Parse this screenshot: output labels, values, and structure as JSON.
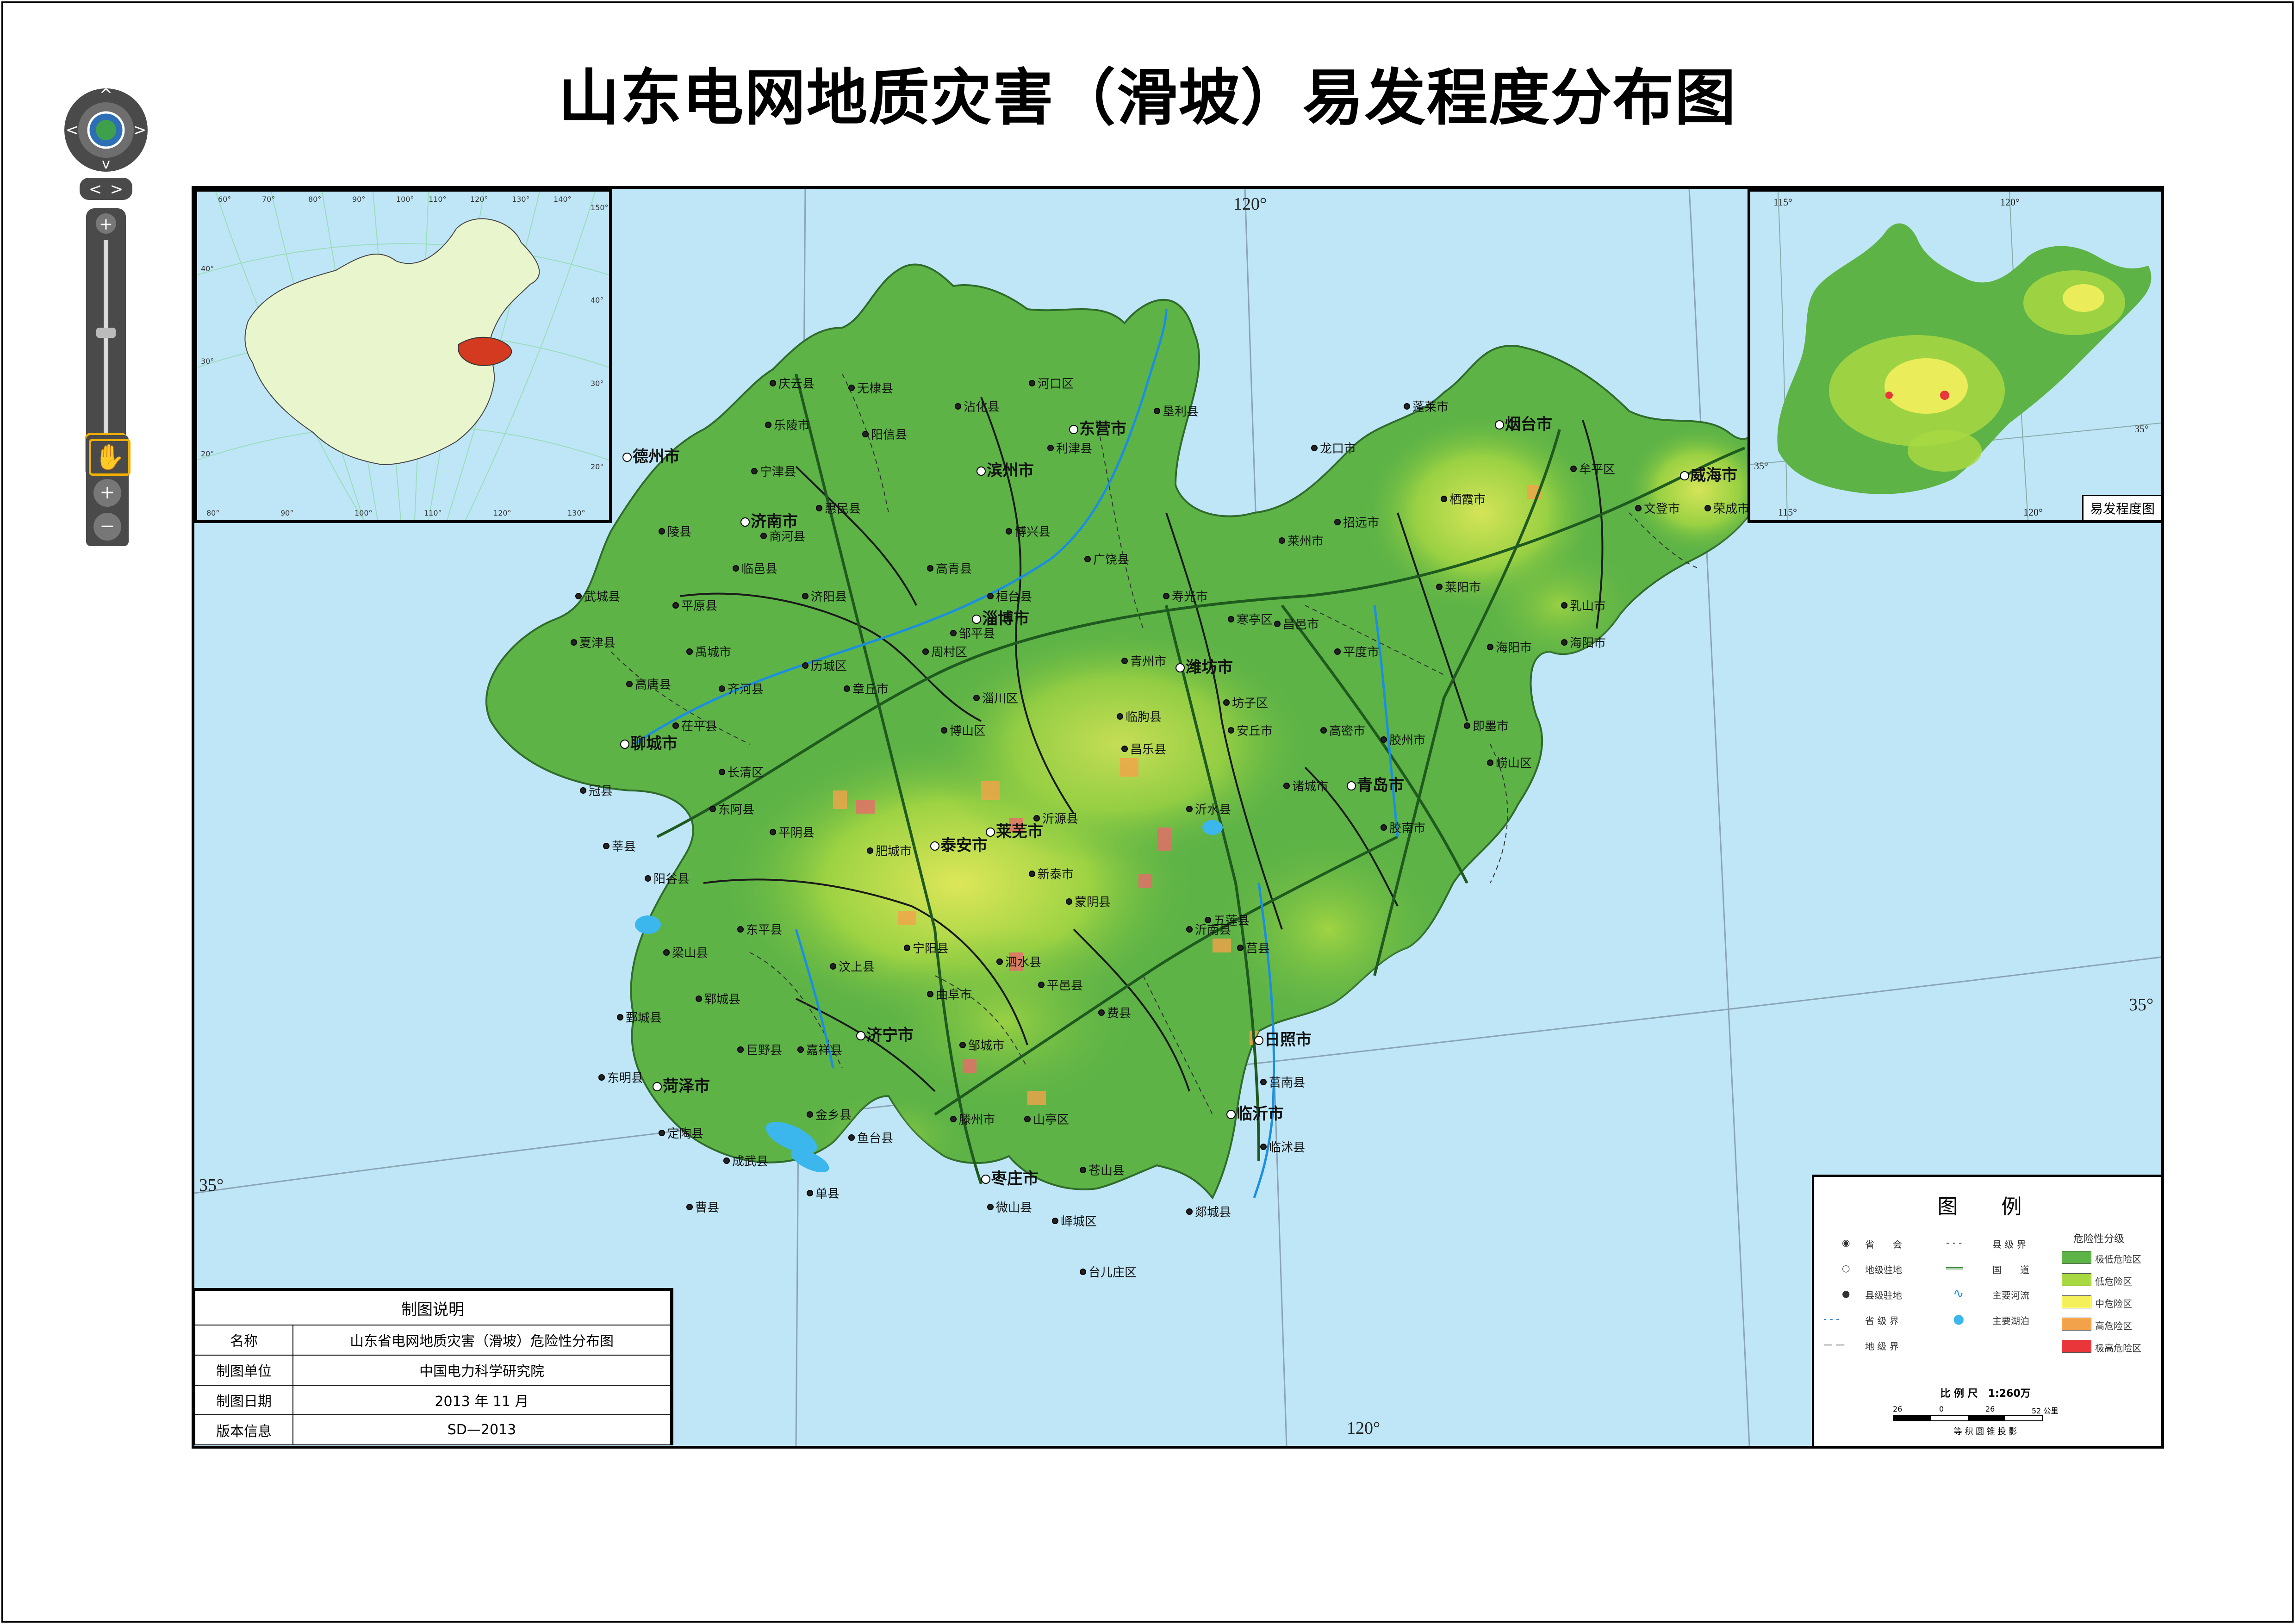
{
  "title": "山东电网地质灾害（滑坡）易发程度分布图",
  "nav": {
    "pan_up": "^",
    "pan_down": "v",
    "pan_left": "<",
    "pan_right": ">",
    "zoom_in": "+",
    "zoom_out": "−"
  },
  "graticule": {
    "main_lon_120_top": "120°",
    "main_lon_120_bottom": "120°",
    "main_lat_35_right": "35°",
    "main_lat_35_left": "35°"
  },
  "inset_china": {
    "lon_labels": [
      "60°",
      "70°",
      "80°",
      "90°",
      "100°",
      "110°",
      "120°",
      "130°",
      "140°",
      "150°"
    ],
    "lat_labels": [
      "40°",
      "30°",
      "20°",
      "40°",
      "30°",
      "20°"
    ],
    "bottom_labels": [
      "80°",
      "90°",
      "100°",
      "110°",
      "120°",
      "130°"
    ]
  },
  "inset_terrain": {
    "lon_115_top": "115°",
    "lon_120_top": "120°",
    "lon_115_bottom": "115°",
    "lon_120_bottom": "120°",
    "lat_35_right": "35°",
    "lat_35_left": "35°",
    "caption": "易发程度图"
  },
  "places": {
    "jinan": "济南市",
    "dezhou": "德州市",
    "binzhou": "滨州市",
    "dongying": "东营市",
    "hekou": "河口区",
    "zibo": "淄博市",
    "weifang": "潍坊市",
    "yantai": "烟台市",
    "weihai": "威海市",
    "qingdao": "青岛市",
    "rizhao": "日照市",
    "linyi": "临沂市",
    "zaozhuang": "枣庄市",
    "jining": "济宁市",
    "heze": "菏泽市",
    "taian": "泰安市",
    "laiwu": "莱芜市",
    "liaocheng": "聊城市",
    "penglai": "蓬莱市",
    "longkou": "龙口市",
    "laizhou": "莱州市",
    "zhaoyuan": "招远市",
    "qixia": "栖霞市",
    "laiyang": "莱阳市",
    "haiyang": "海阳市",
    "rushan": "乳山市",
    "wendeng": "文登市",
    "rongcheng": "荣成市",
    "muping": "牟平区",
    "pingdu": "平度市",
    "jimo": "即墨市",
    "laoshan": "崂山区",
    "jiaozhou": "胶州市",
    "jiaonan": "胶南市",
    "gaomi": "高密市",
    "zhucheng": "诸城市",
    "anqiu": "安丘市",
    "changyi": "昌邑市",
    "shouguang": "寿光市",
    "qingzhou": "青州市",
    "linqu": "临朐县",
    "yishui": "沂水县",
    "yiyuan": "沂源县",
    "mengyin": "蒙阴县",
    "pingyi": "平邑县",
    "feixian": "费县",
    "yinan": "沂南县",
    "juxian": "莒县",
    "junan": "莒南县",
    "linshu": "临沭县",
    "tancheng": "郯城县",
    "cangshan": "苍山县",
    "shanting": "山亭区",
    "yicheng": "峄城区",
    "taierzhuang": "台儿庄区",
    "tengzhou": "滕州市",
    "weishan": "微山县",
    "zoucheng": "邹城市",
    "qufu": "曲阜市",
    "sishui": "泗水县",
    "xintai": "新泰市",
    "feicheng": "肥城市",
    "ningyang": "宁阳县",
    "wenshang": "汶上县",
    "liangshan": "梁山县",
    "jiaxiang": "嘉祥县",
    "yutai": "鱼台县",
    "jinxiang": "金乡县",
    "shanxian": "单县",
    "caoxian": "曹县",
    "chengwu": "成武县",
    "dingtao": "定陶县",
    "dongming": "东明县",
    "juancheng": "鄄城县",
    "yuncheng": "郓城县",
    "juye": "巨野县",
    "dongping": "东平县",
    "pingyin": "平阴县",
    "donga": "东阿县",
    "yanggu": "阳谷县",
    "shenxian": "莘县",
    "guanxian": "冠县",
    "chiping": "茌平县",
    "gaotang": "高唐县",
    "xiajin": "夏津县",
    "wucheng": "武城县",
    "pingyuan": "平原县",
    "yucheng": "禹城市",
    "qihe": "齐河县",
    "changqing": "长清区",
    "zhangqiu": "章丘市",
    "licheng": "历城区",
    "jiyang": "济阳县",
    "shanghe": "商河县",
    "linyi_county": "临邑县",
    "lingxian": "陵县",
    "ningjin": "宁津县",
    "leling": "乐陵市",
    "qingyun": "庆云县",
    "wudi": "无棣县",
    "yangxin": "阳信县",
    "zhanhua": "沾化县",
    "huimin": "惠民县",
    "kenli": "垦利县",
    "lijin": "利津县",
    "guangrao": "广饶县",
    "boxing": "博兴县",
    "gaoqing": "高青县",
    "zouping": "邹平县",
    "huantai": "桓台县",
    "zhoucun": "周村区",
    "boshan": "博山区",
    "zichuan": "淄川区",
    "changle": "昌乐县",
    "fangzi": "坊子区",
    "hanting": "寒亭区",
    "wulian": "五莲县",
    "haiyang2": "海阳市"
  },
  "info_table": {
    "header": "制图说明",
    "rows": [
      {
        "k": "名称",
        "v": "山东省电网地质灾害（滑坡）危险性分布图"
      },
      {
        "k": "制图单位",
        "v": "中国电力科学研究院"
      },
      {
        "k": "制图日期",
        "v": "2013 年 11 月"
      },
      {
        "k": "版本信息",
        "v": "SD—2013"
      }
    ]
  },
  "legend": {
    "title": "图 例",
    "symbols": [
      {
        "label": "省　　会",
        "glyph": "◉"
      },
      {
        "label": "地级驻地",
        "glyph": "○"
      },
      {
        "label": "县级驻地",
        "glyph": "●"
      },
      {
        "label": "省 级 界",
        "glyph": "- - -"
      },
      {
        "label": "地 级 界",
        "glyph": "— —"
      },
      {
        "label": "县 级 界",
        "glyph": "- - -"
      },
      {
        "label": "国　　道",
        "glyph": "═══"
      },
      {
        "label": "主要河流",
        "glyph": "∿"
      },
      {
        "label": "主要湖泊",
        "glyph": "●"
      }
    ],
    "risk_head": "危险性分级",
    "risk_classes": [
      {
        "label": "极低危险区",
        "color": "#5db346"
      },
      {
        "label": "低危险区",
        "color": "#a8d842"
      },
      {
        "label": "中危险区",
        "color": "#f3f05c"
      },
      {
        "label": "高危险区",
        "color": "#f2a24a"
      },
      {
        "label": "极高危险区",
        "color": "#e8363a"
      }
    ],
    "scale_title": "比 例 尺　1:260万",
    "scale_ticks": [
      "26",
      "0",
      "26",
      "52 公里"
    ],
    "projection": "等 积 圆 锥 投 影"
  },
  "colors": {
    "sea": "#bfe6f7",
    "land_low": "#5db346",
    "land_mid": "#a8d842",
    "china_land": "#e9f5cc",
    "shandong_highlight": "#d33a1f"
  }
}
